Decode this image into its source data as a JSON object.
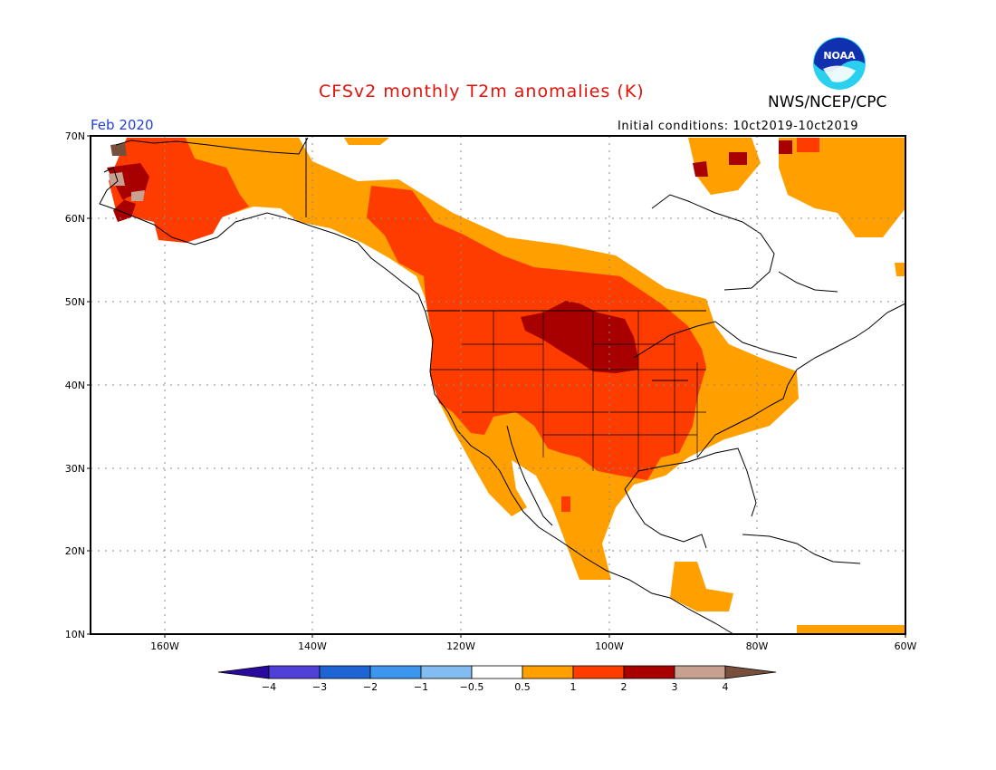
{
  "header": {
    "title": "CFSv2 monthly T2m anomalies (K)",
    "agency": "NWS/NCEP/CPC",
    "period": "Feb 2020",
    "initial_conditions": "Initial conditions: 10ct2019-10ct2019",
    "logo_text": "NOAA"
  },
  "map": {
    "region": "North America",
    "lon_range": [
      -170,
      -60
    ],
    "lat_range": [
      10,
      70
    ],
    "lat_ticks": [
      "10N",
      "20N",
      "30N",
      "40N",
      "50N",
      "60N",
      "70N"
    ],
    "lon_ticks": [
      "160W",
      "140W",
      "120W",
      "100W",
      "80W",
      "60W"
    ],
    "grid": "dotted"
  },
  "colorbar": {
    "labels": [
      "-4",
      "-3",
      "-2",
      "-1",
      "-0.5",
      "0.5",
      "1",
      "2",
      "3",
      "4"
    ],
    "colors": [
      "#2a0a9e",
      "#5040d8",
      "#1e64d4",
      "#3c96ee",
      "#82bcf0",
      "#ffffff",
      "#ffa000",
      "#ff3c00",
      "#a80000",
      "#c8a090",
      "#784e3c"
    ]
  },
  "anomaly_classes": {
    "0.5-1": "#ffa000",
    "1-2": "#ff3c00",
    "2-3": "#a80000",
    "3-4": "#c8a090",
    ">4": "#784e3c"
  }
}
